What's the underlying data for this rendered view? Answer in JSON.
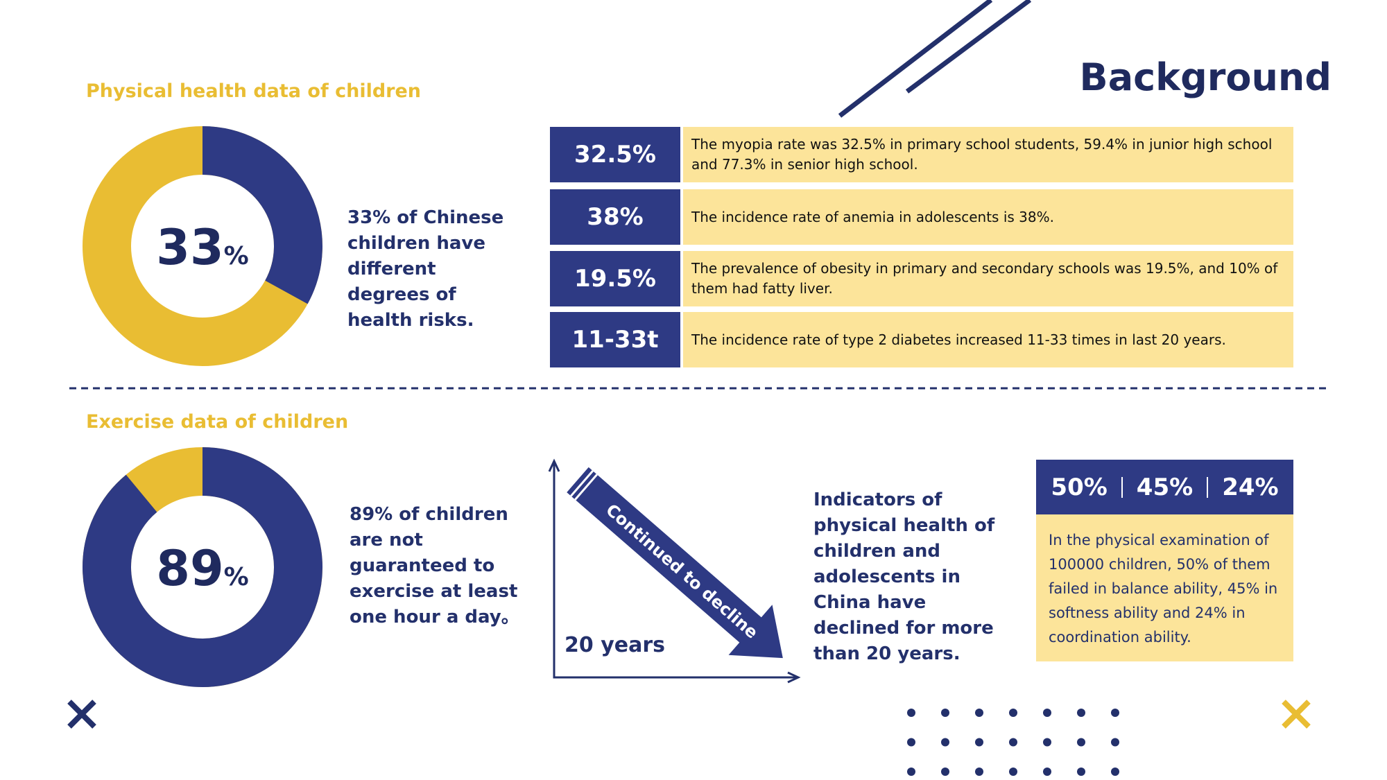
{
  "header": {
    "title": "Background"
  },
  "sections": [
    {
      "heading": "Physical health data of children",
      "donut": {
        "value": 33,
        "unit": "%"
      },
      "description": "33% of Chinese children have different degrees of health risks.",
      "stats": [
        {
          "figure": "32.5%",
          "text": "The myopia rate was 32.5% in primary school students, 59.4% in junior high school and 77.3% in senior high school."
        },
        {
          "figure": "38%",
          "text": "The incidence rate of anemia in adolescents is 38%."
        },
        {
          "figure": "19.5%",
          "text": "The prevalence of obesity in primary and secondary schools was 19.5%, and 10% of them had fatty liver."
        },
        {
          "figure": "11-33t",
          "text": "The incidence rate of type 2 diabetes increased 11-33 times in last 20 years."
        }
      ]
    },
    {
      "heading": "Exercise data of children",
      "donut": {
        "value": 89,
        "unit": "%"
      },
      "description": "89% of children are not guaranteed to exercise at least one hour a day。",
      "trend": {
        "arrow_label": "Continued to decline",
        "axis_label": "20 years",
        "text": "Indicators of physical health of children and adolescents in China have declined for more than 20 years."
      },
      "summary": {
        "figures": [
          "50%",
          "45%",
          "24%"
        ],
        "text": "In the physical examination of 100000 children, 50% of them failed in balance ability, 45% in softness ability and 24% in coordination ability."
      }
    }
  ]
}
